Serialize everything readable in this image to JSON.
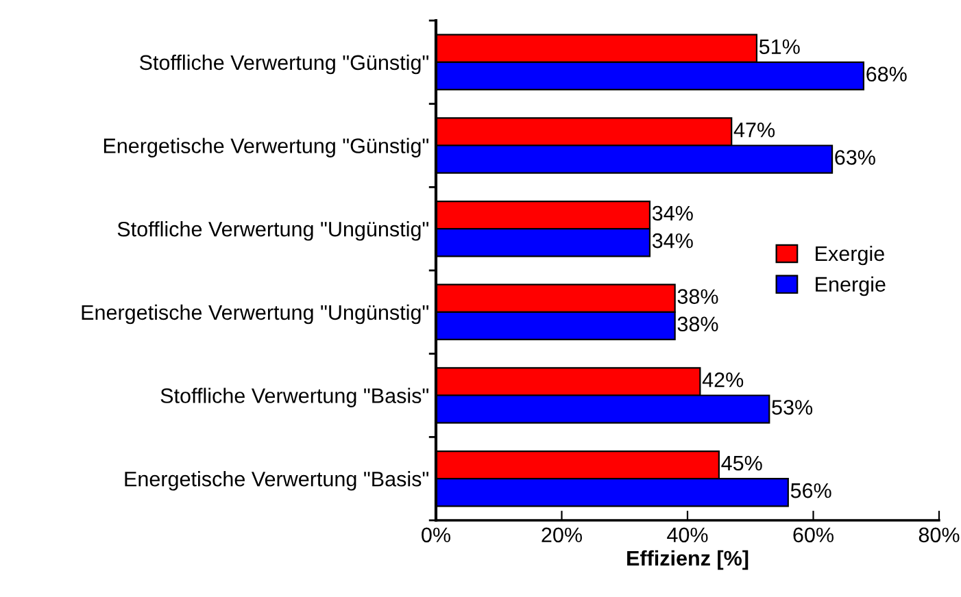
{
  "chart_data": {
    "type": "bar",
    "orientation": "horizontal",
    "xlabel": "Effizienz [%]",
    "categories": [
      "Stoffliche Verwertung \"Günstig\"",
      "Energetische Verwertung \"Günstig\"",
      "Stoffliche Verwertung \"Ungünstig\"",
      "Energetische Verwertung \"Ungünstig\"",
      "Stoffliche Verwertung \"Basis\"",
      "Energetische Verwertung \"Basis\""
    ],
    "series": [
      {
        "name": "Exergie",
        "color": "#ff0000",
        "values": [
          51,
          47,
          34,
          38,
          42,
          45
        ],
        "value_labels": [
          "51%",
          "47%",
          "34%",
          "38%",
          "42%",
          "45%"
        ]
      },
      {
        "name": "Energie",
        "color": "#0000ff",
        "values": [
          68,
          63,
          34,
          38,
          53,
          56
        ],
        "value_labels": [
          "68%",
          "63%",
          "34%",
          "38%",
          "53%",
          "56%"
        ]
      }
    ],
    "xlim": [
      0,
      80
    ],
    "xticks": [
      {
        "value": 0,
        "label": "0%"
      },
      {
        "value": 20,
        "label": "20%"
      },
      {
        "value": 40,
        "label": "40%"
      },
      {
        "value": 60,
        "label": "60%"
      },
      {
        "value": 80,
        "label": "80%"
      }
    ],
    "grid": false,
    "legend": "right"
  }
}
